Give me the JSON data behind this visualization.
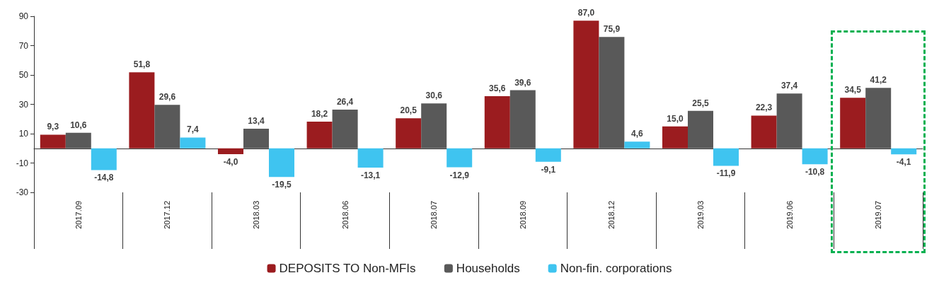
{
  "chart_data": {
    "type": "bar",
    "categories": [
      "2017.09",
      "2017.12",
      "2018.03",
      "2018.06",
      "2018.07",
      "2018.09",
      "2018.12",
      "2019.03",
      "2019.06",
      "2019.07"
    ],
    "series": [
      {
        "name": "DEPOSITS TO Non-MFIs",
        "color": "#9b1c1f",
        "values": [
          9.3,
          51.8,
          -4.0,
          18.2,
          20.5,
          35.6,
          87.0,
          15.0,
          22.3,
          34.5
        ],
        "value_labels": [
          "9,3",
          "51,8",
          "-4,0",
          "18,2",
          "20,5",
          "35,6",
          "87,0",
          "15,0",
          "22,3",
          "34,5"
        ]
      },
      {
        "name": "Households",
        "color": "#595959",
        "values": [
          10.6,
          29.6,
          13.4,
          26.4,
          30.6,
          39.6,
          75.9,
          25.5,
          37.4,
          41.2
        ],
        "value_labels": [
          "10,6",
          "29,6",
          "13,4",
          "26,4",
          "30,6",
          "39,6",
          "75,9",
          "25,5",
          "37,4",
          "41,2"
        ]
      },
      {
        "name": "Non-fin. corporations",
        "color": "#3fc4f0",
        "values": [
          -14.8,
          7.4,
          -19.5,
          -13.1,
          -12.9,
          -9.1,
          4.6,
          -11.9,
          -10.8,
          -4.1
        ],
        "value_labels": [
          "-14,8",
          "7,4",
          "-19,5",
          "-13,1",
          "-12,9",
          "-9,1",
          "4,6",
          "-11,9",
          "-10,8",
          "-4,1"
        ]
      }
    ],
    "ylim": [
      -30,
      90
    ],
    "yticks": [
      -30,
      -10,
      10,
      30,
      50,
      70,
      90
    ],
    "grid": false,
    "legend": "bottom"
  }
}
